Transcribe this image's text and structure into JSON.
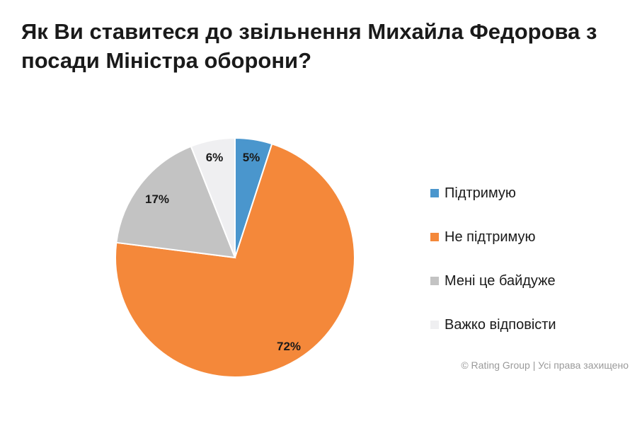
{
  "chart_data": {
    "type": "pie",
    "title": "Як Ви ставитеся до звільнення Михайла Федорова з посади Міністра оборони?",
    "slices": [
      {
        "label": "Підтримую",
        "value": 5,
        "value_label": "5%",
        "color": "#4a96cd"
      },
      {
        "label": "Не підтримую",
        "value": 72,
        "value_label": "72%",
        "color": "#f4883a"
      },
      {
        "label": "Мені це байдуже",
        "value": 17,
        "value_label": "17%",
        "color": "#c3c3c3"
      },
      {
        "label": "Важко відповісти",
        "value": 6,
        "value_label": "6%",
        "color": "#efeff1"
      }
    ],
    "legend_position": "right",
    "start_angle": "12 o'clock",
    "direction": "clockwise"
  },
  "footer": {
    "copyright": "© Rating Group | Усі права захищено"
  }
}
